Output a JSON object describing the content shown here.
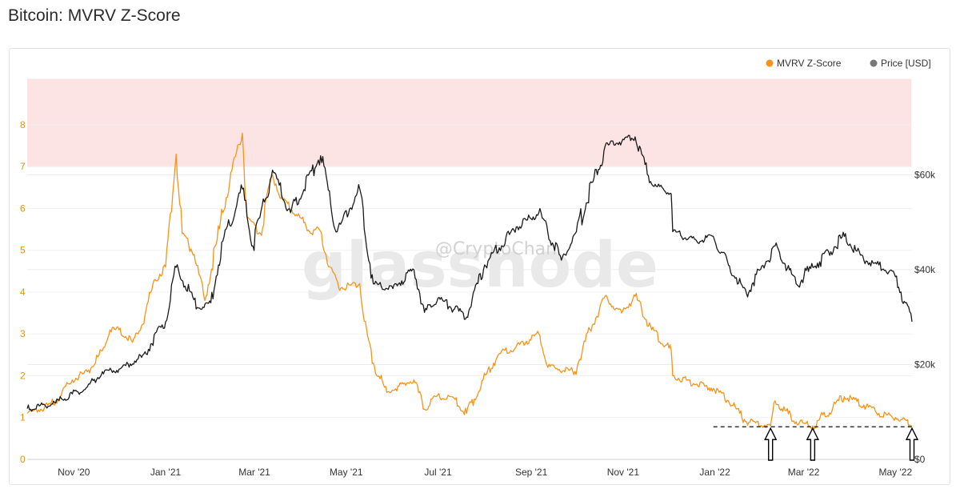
{
  "page": {
    "title": "Bitcoin: MVRV Z-Score"
  },
  "watermark": {
    "brand": "glassnode",
    "handle": "@CryptoChan"
  },
  "colors": {
    "zscore": "#f7931a",
    "price": "#1a1a1a",
    "overvalued_zone": "#fde4e4",
    "left_axis": "#e0901e"
  },
  "chart_data": {
    "type": "line",
    "title": "Bitcoin: MVRV Z-Score",
    "x_ticks": [
      "Nov '20",
      "Jan '21",
      "Mar '21",
      "May '21",
      "Jul '21",
      "Sep '21",
      "Nov '21",
      "Jan '22",
      "Mar '22",
      "May '22"
    ],
    "x_range": [
      "2020-10-01",
      "2022-05-12"
    ],
    "left_axis": {
      "ticks": [
        "0",
        "1",
        "2",
        "3",
        "4",
        "5",
        "6",
        "7",
        "8"
      ],
      "ylim": [
        0,
        9.3
      ]
    },
    "right_axis": {
      "ticks": [
        "$0",
        "$20k",
        "$40k",
        "$60k"
      ],
      "ylim": [
        0,
        82000
      ]
    },
    "shaded_band": {
      "axis": "left",
      "from": 7,
      "to": 9.1
    },
    "reference_line": {
      "axis": "left",
      "value": 0.78,
      "style": "dashed",
      "x_from": "2021-12-31"
    },
    "arrows": [
      "2022-02-07",
      "2022-03-07",
      "2022-05-12"
    ],
    "legend": {
      "position": "top-right"
    },
    "series": [
      {
        "name": "MVRV Z-Score",
        "axis": "left",
        "color": "#f7931a",
        "points": [
          [
            "2020-10-01",
            1.1
          ],
          [
            "2020-10-10",
            1.2
          ],
          [
            "2020-10-20",
            1.4
          ],
          [
            "2020-10-31",
            1.9
          ],
          [
            "2020-11-10",
            2.1
          ],
          [
            "2020-11-20",
            2.6
          ],
          [
            "2020-11-25",
            3.1
          ],
          [
            "2020-12-01",
            3.1
          ],
          [
            "2020-12-10",
            2.8
          ],
          [
            "2020-12-16",
            3.2
          ],
          [
            "2020-12-25",
            4.3
          ],
          [
            "2021-01-01",
            4.6
          ],
          [
            "2021-01-08",
            7.3
          ],
          [
            "2021-01-12",
            5.4
          ],
          [
            "2021-01-20",
            4.9
          ],
          [
            "2021-01-27",
            3.8
          ],
          [
            "2021-02-08",
            5.9
          ],
          [
            "2021-02-14",
            6.9
          ],
          [
            "2021-02-21",
            7.8
          ],
          [
            "2021-02-24",
            5.8
          ],
          [
            "2021-03-05",
            5.4
          ],
          [
            "2021-03-13",
            6.8
          ],
          [
            "2021-03-20",
            6.2
          ],
          [
            "2021-03-31",
            5.8
          ],
          [
            "2021-04-08",
            5.4
          ],
          [
            "2021-04-13",
            5.5
          ],
          [
            "2021-04-20",
            4.6
          ],
          [
            "2021-04-26",
            4.1
          ],
          [
            "2021-05-10",
            4.2
          ],
          [
            "2021-05-13",
            3.3
          ],
          [
            "2021-05-19",
            2.3
          ],
          [
            "2021-05-28",
            1.6
          ],
          [
            "2021-06-08",
            1.8
          ],
          [
            "2021-06-15",
            1.9
          ],
          [
            "2021-06-22",
            1.2
          ],
          [
            "2021-06-30",
            1.5
          ],
          [
            "2021-07-10",
            1.5
          ],
          [
            "2021-07-20",
            1.1
          ],
          [
            "2021-07-31",
            1.9
          ],
          [
            "2021-08-10",
            2.5
          ],
          [
            "2021-08-22",
            2.7
          ],
          [
            "2021-09-06",
            3.0
          ],
          [
            "2021-09-12",
            2.2
          ],
          [
            "2021-09-30",
            2.1
          ],
          [
            "2021-10-10",
            3.1
          ],
          [
            "2021-10-20",
            3.9
          ],
          [
            "2021-10-31",
            3.5
          ],
          [
            "2021-11-09",
            3.9
          ],
          [
            "2021-11-20",
            3.1
          ],
          [
            "2021-12-03",
            2.6
          ],
          [
            "2021-12-04",
            2.0
          ],
          [
            "2021-12-20",
            1.8
          ],
          [
            "2021-12-31",
            1.7
          ],
          [
            "2022-01-10",
            1.4
          ],
          [
            "2022-01-22",
            0.9
          ],
          [
            "2022-02-07",
            0.8
          ],
          [
            "2022-02-10",
            1.4
          ],
          [
            "2022-02-24",
            0.9
          ],
          [
            "2022-03-07",
            0.8
          ],
          [
            "2022-03-28",
            1.5
          ],
          [
            "2022-04-10",
            1.3
          ],
          [
            "2022-04-20",
            1.1
          ],
          [
            "2022-05-01",
            1.0
          ],
          [
            "2022-05-12",
            0.8
          ]
        ]
      },
      {
        "name": "Price [USD]",
        "axis": "right",
        "color": "#1a1a1a",
        "points": [
          [
            "2020-10-01",
            10700
          ],
          [
            "2020-10-20",
            11900
          ],
          [
            "2020-10-31",
            13800
          ],
          [
            "2020-11-10",
            15300
          ],
          [
            "2020-11-20",
            18500
          ],
          [
            "2020-12-01",
            19000
          ],
          [
            "2020-12-16",
            21500
          ],
          [
            "2021-01-01",
            29000
          ],
          [
            "2021-01-08",
            40500
          ],
          [
            "2021-01-22",
            32000
          ],
          [
            "2021-01-31",
            33000
          ],
          [
            "2021-02-08",
            46000
          ],
          [
            "2021-02-21",
            57000
          ],
          [
            "2021-02-28",
            45000
          ],
          [
            "2021-03-13",
            61000
          ],
          [
            "2021-03-25",
            52000
          ],
          [
            "2021-04-14",
            64000
          ],
          [
            "2021-04-25",
            48000
          ],
          [
            "2021-05-10",
            57000
          ],
          [
            "2021-05-19",
            37000
          ],
          [
            "2021-06-01",
            36000
          ],
          [
            "2021-06-15",
            40000
          ],
          [
            "2021-06-22",
            31000
          ],
          [
            "2021-07-01",
            34000
          ],
          [
            "2021-07-20",
            30000
          ],
          [
            "2021-08-01",
            41000
          ],
          [
            "2021-08-22",
            49000
          ],
          [
            "2021-09-06",
            52000
          ],
          [
            "2021-09-21",
            42000
          ],
          [
            "2021-10-01",
            48000
          ],
          [
            "2021-10-20",
            66000
          ],
          [
            "2021-11-09",
            68000
          ],
          [
            "2021-11-20",
            58000
          ],
          [
            "2021-12-03",
            56000
          ],
          [
            "2021-12-04",
            48000
          ],
          [
            "2021-12-20",
            46000
          ],
          [
            "2021-12-31",
            47000
          ],
          [
            "2022-01-10",
            41000
          ],
          [
            "2022-01-22",
            35000
          ],
          [
            "2022-02-10",
            45000
          ],
          [
            "2022-02-24",
            37000
          ],
          [
            "2022-03-28",
            47000
          ],
          [
            "2022-04-10",
            42000
          ],
          [
            "2022-04-20",
            41000
          ],
          [
            "2022-05-01",
            38500
          ],
          [
            "2022-05-12",
            29000
          ]
        ]
      }
    ]
  }
}
